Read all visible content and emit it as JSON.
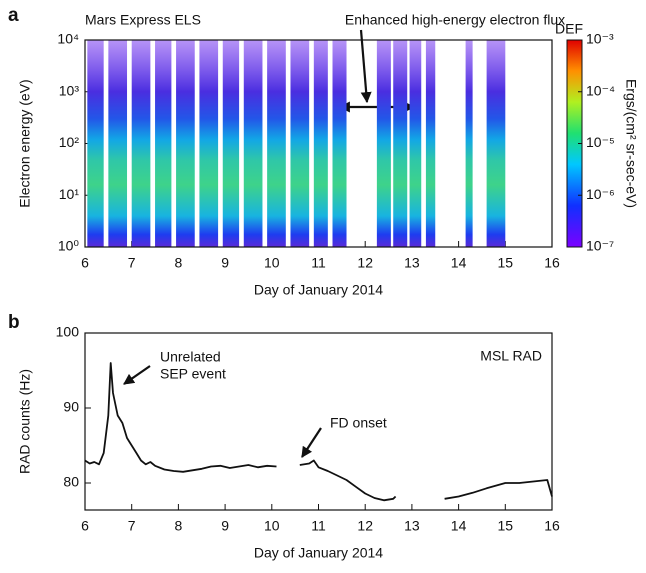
{
  "chart_data": [
    {
      "type": "spectrogram",
      "panel": "a",
      "annotations": [
        "Mars Express ELS",
        "Enhanced high-energy electron flux"
      ],
      "xlabel": "Day of January 2014",
      "ylabel": "Electron energy (eV)",
      "xlim": [
        6,
        16
      ],
      "xticks": [
        6,
        7,
        8,
        9,
        10,
        11,
        12,
        13,
        14,
        15,
        16
      ],
      "ylim": [
        1,
        10000
      ],
      "yscale": "log",
      "yticks": [
        {
          "value": 1,
          "label": "10⁰"
        },
        {
          "value": 10,
          "label": "10¹"
        },
        {
          "value": 100,
          "label": "10²"
        },
        {
          "value": 1000,
          "label": "10³"
        },
        {
          "value": 10000,
          "label": "10⁴"
        }
      ],
      "coverage_days": [
        [
          6.05,
          6.4
        ],
        [
          6.5,
          6.9
        ],
        [
          7.0,
          7.4
        ],
        [
          7.5,
          7.85
        ],
        [
          7.95,
          8.35
        ],
        [
          8.45,
          8.85
        ],
        [
          8.95,
          9.3
        ],
        [
          9.4,
          9.8
        ],
        [
          9.9,
          10.3
        ],
        [
          10.4,
          10.8
        ],
        [
          10.9,
          11.2
        ],
        [
          11.3,
          11.6
        ],
        [
          12.25,
          12.55
        ],
        [
          12.6,
          12.9
        ],
        [
          12.95,
          13.2
        ],
        [
          13.3,
          13.5
        ],
        [
          14.15,
          14.3
        ],
        [
          14.6,
          15.0
        ]
      ],
      "colorbar": {
        "title": "DEF",
        "label": "Ergs/(cm² sr-sec-eV)",
        "lim": [
          1e-07,
          0.001
        ],
        "scale": "log",
        "ticks": [
          {
            "value": 0.001,
            "label": "10⁻³"
          },
          {
            "value": 0.0001,
            "label": "10⁻⁴"
          },
          {
            "value": 1e-05,
            "label": "10⁻⁵"
          },
          {
            "value": 1e-06,
            "label": "10⁻⁶"
          },
          {
            "value": 1e-07,
            "label": "10⁻⁷"
          }
        ]
      }
    },
    {
      "type": "line",
      "panel": "b",
      "annotations": [
        "Unrelated",
        "SEP event",
        "FD onset",
        "MSL RAD"
      ],
      "xlabel": "Day of January 2014",
      "ylabel": "RAD counts (Hz)",
      "xlim": [
        6,
        16
      ],
      "xticks": [
        6,
        7,
        8,
        9,
        10,
        11,
        12,
        13,
        14,
        15,
        16
      ],
      "ylim": [
        76.4,
        100
      ],
      "yticks": [
        80,
        90,
        100
      ],
      "color": "#111111",
      "x": [
        6.0,
        6.1,
        6.2,
        6.3,
        6.4,
        6.5,
        6.55,
        6.6,
        6.7,
        6.8,
        6.9,
        7.0,
        7.1,
        7.2,
        7.3,
        7.4,
        7.5,
        7.7,
        7.9,
        8.1,
        8.3,
        8.5,
        8.7,
        8.9,
        9.1,
        9.3,
        9.5,
        9.7,
        9.9,
        10.1,
        10.3,
        10.6,
        10.8,
        10.9,
        11.0,
        11.2,
        11.4,
        11.6,
        11.8,
        12.0,
        12.2,
        12.4,
        12.6,
        12.65,
        13.2,
        13.7,
        14.0,
        14.3,
        14.6,
        15.0,
        15.3,
        15.6,
        15.9,
        16.0
      ],
      "values": [
        83,
        82.6,
        82.8,
        82.5,
        84,
        89,
        96,
        92,
        89,
        88,
        86,
        85,
        84,
        83,
        82.5,
        82.8,
        82.3,
        81.8,
        81.6,
        81.5,
        81.7,
        81.9,
        82.2,
        82.3,
        82.0,
        82.2,
        82.4,
        82.1,
        82.3,
        82.2,
        null,
        82.4,
        82.6,
        83.0,
        82.1,
        81.6,
        81.0,
        80.4,
        79.5,
        78.6,
        78.0,
        77.7,
        77.9,
        78.2,
        null,
        77.9,
        78.2,
        78.7,
        79.3,
        80.0,
        80.0,
        80.2,
        80.4,
        78.2
      ]
    }
  ]
}
